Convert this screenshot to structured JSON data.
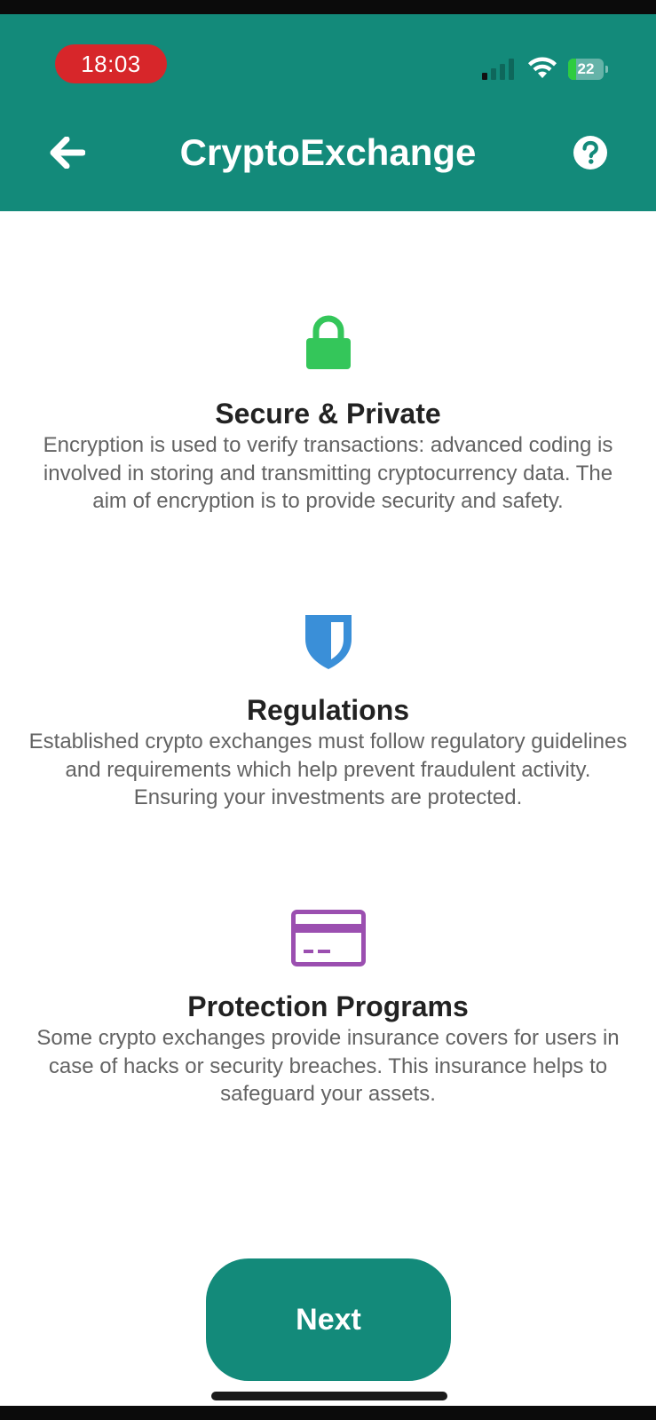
{
  "status_bar": {
    "time": "18:03",
    "battery_level": "22",
    "battery_fraction": 0.22,
    "signal_bars_active": 1,
    "signal_bars_total": 4
  },
  "header": {
    "title": "CryptoExchange",
    "back_icon": "arrow-left-icon",
    "help_icon": "question-circle-icon"
  },
  "features": [
    {
      "icon": "lock-icon",
      "title": "Secure & Private",
      "description": "Encryption is used to verify transactions: advanced coding is involved in storing and transmitting cryptocurrency data. The aim of encryption is to provide security and safety."
    },
    {
      "icon": "shield-icon",
      "title": "Regulations",
      "description": "Established crypto exchanges must follow regulatory guidelines and requirements which help prevent fraudulent activity. Ensuring your investments are protected."
    },
    {
      "icon": "credit-card-icon",
      "title": "Protection Programs",
      "description": "Some crypto exchanges provide insurance covers for users in case of hacks or security breaches. This insurance helps to safeguard your assets."
    }
  ],
  "next_button": {
    "label": "Next"
  },
  "colors": {
    "header_bg": "#138a7a",
    "button_bg": "#138a7a",
    "time_pill": "#d7262a",
    "lock_icon": "#34c65a",
    "shield_icon": "#3a8fd8",
    "card_icon": "#9b4fb0",
    "title_text": "#222222",
    "body_text": "#636363"
  }
}
